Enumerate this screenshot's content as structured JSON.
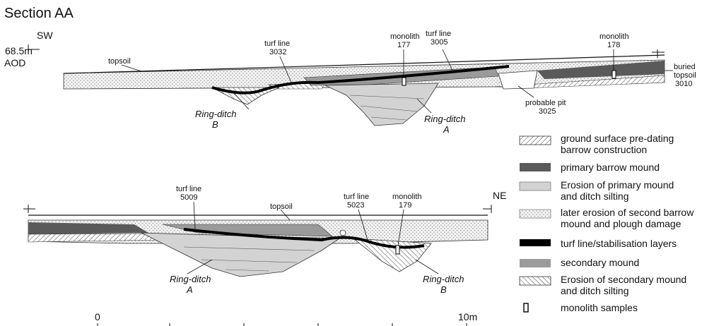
{
  "title": "Section AA",
  "upper_section": {
    "orientation": "SW",
    "datum": "68.5m",
    "datum_unit": "AOD",
    "topsoil": "topsoil",
    "turf_line_1": "turf line",
    "turf_line_1_num": "3032",
    "turf_line_2": "turf line",
    "turf_line_2_num": "3005",
    "monolith_1": "monolith",
    "monolith_1_num": "177",
    "monolith_2": "monolith",
    "monolith_2_num": "178",
    "buried_topsoil": "buried",
    "buried_topsoil_2": "topsoil",
    "buried_topsoil_num": "3010",
    "pit": "probable pit",
    "pit_num": "3025",
    "ring_ditch_b": "Ring-ditch",
    "ring_ditch_b_letter": "B",
    "ring_ditch_a": "Ring-ditch",
    "ring_ditch_a_letter": "A"
  },
  "lower_section": {
    "orientation": "NE",
    "topsoil": "topsoil",
    "turf_line_1": "turf line",
    "turf_line_1_num": "5009",
    "turf_line_2": "turf line",
    "turf_line_2_num": "5023",
    "monolith": "monolith",
    "monolith_num": "179",
    "ring_ditch_a": "Ring-ditch",
    "ring_ditch_a_letter": "A",
    "ring_ditch_b": "Ring-ditch",
    "ring_ditch_b_letter": "B"
  },
  "scale": {
    "start": "0",
    "end": "10m"
  },
  "legend": [
    {
      "line1": "ground surface pre-dating",
      "line2": "barrow construction",
      "swatch": "hatch-fine"
    },
    {
      "line1": "primary barrow mound",
      "line2": "",
      "swatch": "dark-grey"
    },
    {
      "line1": "Erosion of primary mound",
      "line2": "and ditch silting",
      "swatch": "light-grey"
    },
    {
      "line1": "later erosion of second barrow",
      "line2": "mound and plough damage",
      "swatch": "dots"
    },
    {
      "line1": "turf line/stabilisation layers",
      "line2": "",
      "swatch": "black"
    },
    {
      "line1": "secondary mound",
      "line2": "",
      "swatch": "mid-grey"
    },
    {
      "line1": "Erosion of secondary mound",
      "line2": "and ditch silting",
      "swatch": "hatch-coarse"
    },
    {
      "line1": "monolith samples",
      "line2": "",
      "swatch": "monolith"
    }
  ],
  "colors": {
    "primary_mound": "#5a5a5a",
    "erosion_primary": "#d3d3d3",
    "secondary_mound": "#9a9a9a",
    "turf": "#000000"
  }
}
